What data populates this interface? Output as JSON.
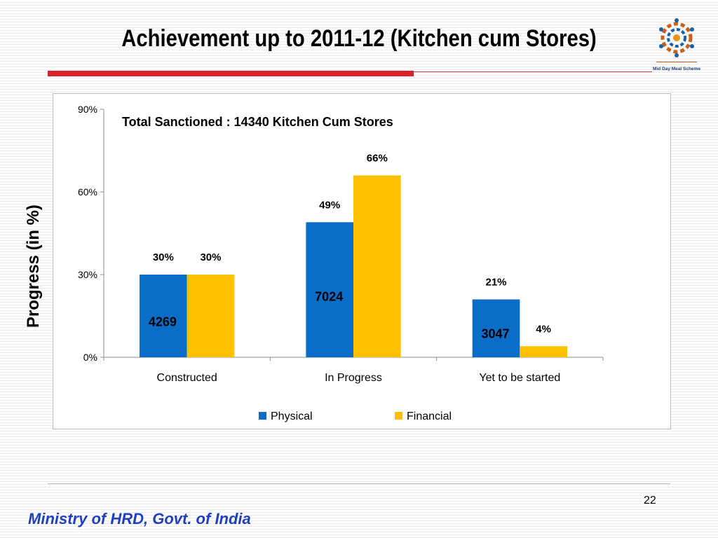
{
  "slide": {
    "title": "Achievement up to 2011-12 (Kitchen cum Stores)",
    "page_number": "22",
    "footer": "Ministry of HRD, Govt. of India",
    "logo_text": "Mid Day Meal Scheme"
  },
  "colors": {
    "physical": "#0a6ec9",
    "financial": "#ffc000",
    "title_rule": "#d9222a",
    "footer_text": "#1f3fbf"
  },
  "chart_data": {
    "type": "bar",
    "annotation": "Total Sanctioned : 14340 Kitchen Cum Stores",
    "ylabel": "Progress (in %)",
    "xlabel": "",
    "categories": [
      "Constructed",
      "In Progress",
      "Yet to be started"
    ],
    "ylim": [
      0,
      90
    ],
    "yticks": [
      0,
      30,
      60,
      90
    ],
    "ytick_labels": [
      "0%",
      "30%",
      "60%",
      "90%"
    ],
    "series": [
      {
        "name": "Physical",
        "values": [
          30,
          49,
          21
        ],
        "labels": [
          "30%",
          "49%",
          "21%"
        ]
      },
      {
        "name": "Financial",
        "values": [
          30,
          66,
          4
        ],
        "labels": [
          "30%",
          "66%",
          "4%"
        ]
      }
    ],
    "counts": [
      "4269",
      "7024",
      "3047"
    ],
    "legend_position": "bottom",
    "grid": false
  }
}
